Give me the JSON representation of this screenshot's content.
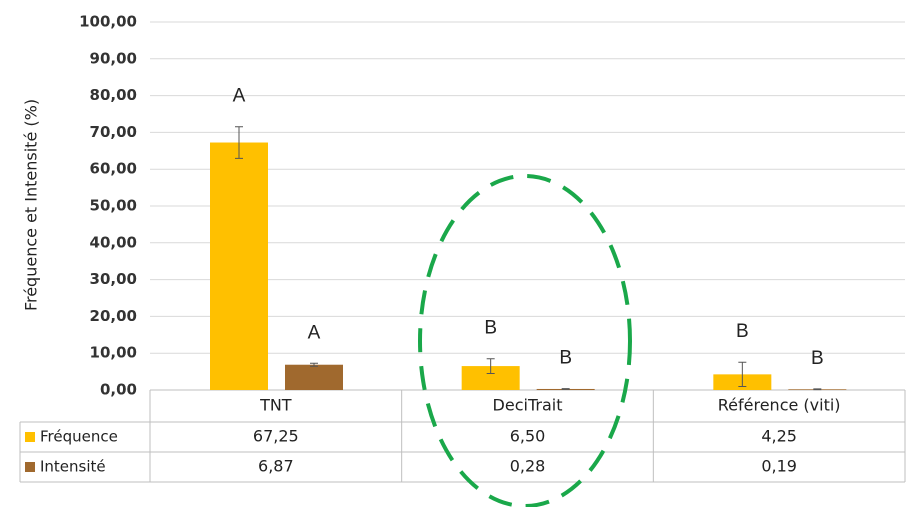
{
  "chart_data": {
    "type": "bar",
    "ylabel": "Fréquence et Intensité (%)",
    "categories": [
      "TNT",
      "DeciTrait",
      "Référence (viti)"
    ],
    "series": [
      {
        "name": "Fréquence",
        "color": "#ffc000",
        "values": [
          67.25,
          6.5,
          4.25
        ],
        "value_labels": [
          "67,25",
          "6,50",
          "4,25"
        ],
        "errors": [
          4.3,
          2,
          3.3
        ],
        "annotations": [
          "A",
          "B",
          "B"
        ]
      },
      {
        "name": "Intensité",
        "color": "#a0692e",
        "values": [
          6.87,
          0.28,
          0.19
        ],
        "value_labels": [
          "6,87",
          "0,28",
          "0,19"
        ],
        "errors": [
          0.4,
          0.1,
          0.1
        ],
        "annotations": [
          "A",
          "B",
          "B"
        ]
      }
    ],
    "ylim": [
      0,
      100
    ],
    "yticks": [
      {
        "value": 0,
        "label": "0,00"
      },
      {
        "value": 10,
        "label": "10,00"
      },
      {
        "value": 20,
        "label": "20,00"
      },
      {
        "value": 30,
        "label": "30,00"
      },
      {
        "value": 40,
        "label": "40,00"
      },
      {
        "value": 50,
        "label": "50,00"
      },
      {
        "value": 60,
        "label": "60,00"
      },
      {
        "value": 70,
        "label": "70,00"
      },
      {
        "value": 80,
        "label": "80,00"
      },
      {
        "value": 90,
        "label": "90,00"
      },
      {
        "value": 100,
        "label": "100,00"
      }
    ],
    "grid": true
  }
}
